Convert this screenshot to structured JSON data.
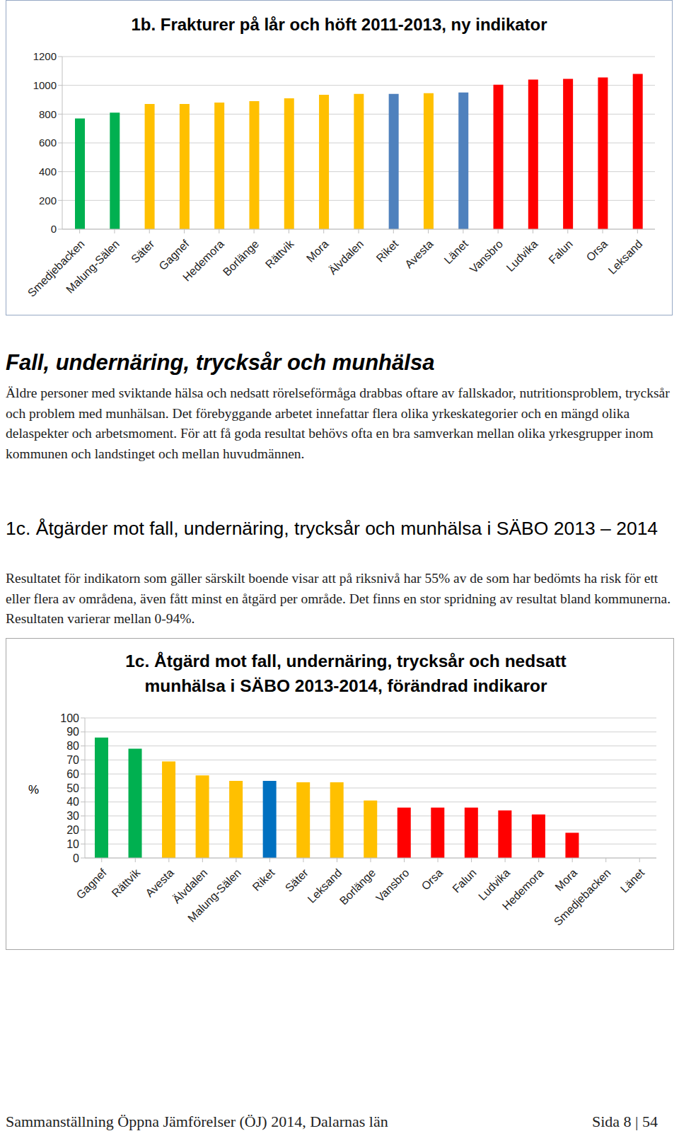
{
  "chart_data": [
    {
      "type": "bar",
      "title": "1b. Frakturer på lår och höft 2011-2013, ny indikator",
      "categories": [
        "Smedjebacken",
        "Malung-Sälen",
        "Säter",
        "Gagnef",
        "Hedemora",
        "Borlänge",
        "Rättvik",
        "Mora",
        "Älvdalen",
        "Riket",
        "Avesta",
        "Länet",
        "Vansbro",
        "Ludvika",
        "Falun",
        "Orsa",
        "Leksand"
      ],
      "values": [
        770,
        810,
        870,
        870,
        880,
        890,
        910,
        935,
        940,
        940,
        945,
        950,
        1005,
        1040,
        1045,
        1055,
        1080
      ],
      "colors": [
        "#00b050",
        "#00b050",
        "#ffc000",
        "#ffc000",
        "#ffc000",
        "#ffc000",
        "#ffc000",
        "#ffc000",
        "#ffc000",
        "#4f81bd",
        "#ffc000",
        "#4f81bd",
        "#ff0000",
        "#ff0000",
        "#ff0000",
        "#ff0000",
        "#ff0000"
      ],
      "ylim": [
        0,
        1200
      ],
      "yticks": [
        0,
        200,
        400,
        600,
        800,
        1000,
        1200
      ],
      "grid": true
    },
    {
      "type": "bar",
      "title": "1c. Åtgärd mot fall, undernäring, trycksår och nedsatt munhälsa i SÄBO 2013-2014, förändrad indikaror",
      "y_label": "%",
      "categories": [
        "Gagnef",
        "Rättvik",
        "Avesta",
        "Älvdalen",
        "Malung-Sälen",
        "Riket",
        "Säter",
        "Leksand",
        "Borlänge",
        "Vansbro",
        "Orsa",
        "Falun",
        "Ludvika",
        "Hedemora",
        "Mora",
        "Smedjebacken",
        "Länet"
      ],
      "values": [
        86,
        78,
        69,
        59,
        55,
        55,
        54,
        54,
        41,
        36,
        36,
        36,
        34,
        31,
        18,
        null,
        null
      ],
      "colors": [
        "#00b050",
        "#00b050",
        "#ffc000",
        "#ffc000",
        "#ffc000",
        "#0070c0",
        "#ffc000",
        "#ffc000",
        "#ffc000",
        "#ff0000",
        "#ff0000",
        "#ff0000",
        "#ff0000",
        "#ff0000",
        "#ff0000",
        "#ff0000",
        "#ff0000"
      ],
      "ylim": [
        0,
        100
      ],
      "yticks": [
        0,
        10,
        20,
        30,
        40,
        50,
        60,
        70,
        80,
        90,
        100
      ],
      "grid": true
    }
  ],
  "sections": [
    {
      "heading": "Fall, undernäring, trycksår och munhälsa",
      "text": "Äldre personer med sviktande hälsa och nedsatt rörelseförmåga drabbas oftare av fallskador, nutritionsproblem, trycksår och problem med munhälsan. Det förebyggande arbetet innefattar flera olika yrkeskategorier och en mängd olika delaspekter och arbetsmoment. För att få goda resultat behövs ofta en bra samverkan mellan olika yrkesgrupper inom kommunen och landstinget och mellan huvudmännen."
    },
    {
      "heading": "1c. Åtgärder mot fall, undernäring, trycksår och munhälsa i SÄBO 2013 – 2014",
      "text": "Resultatet för indikatorn som gäller särskilt boende visar att på riksnivå har 55% av de som har bedömts ha risk för ett eller flera av områdena, även fått minst en åtgärd per område. Det finns en stor spridning av resultat bland kommunerna. Resultaten varierar mellan 0-94%."
    }
  ],
  "footer": {
    "left": "Sammanställning Öppna Jämförelser (ÖJ) 2014, Dalarnas län",
    "right": "Sida 8 | 54"
  }
}
